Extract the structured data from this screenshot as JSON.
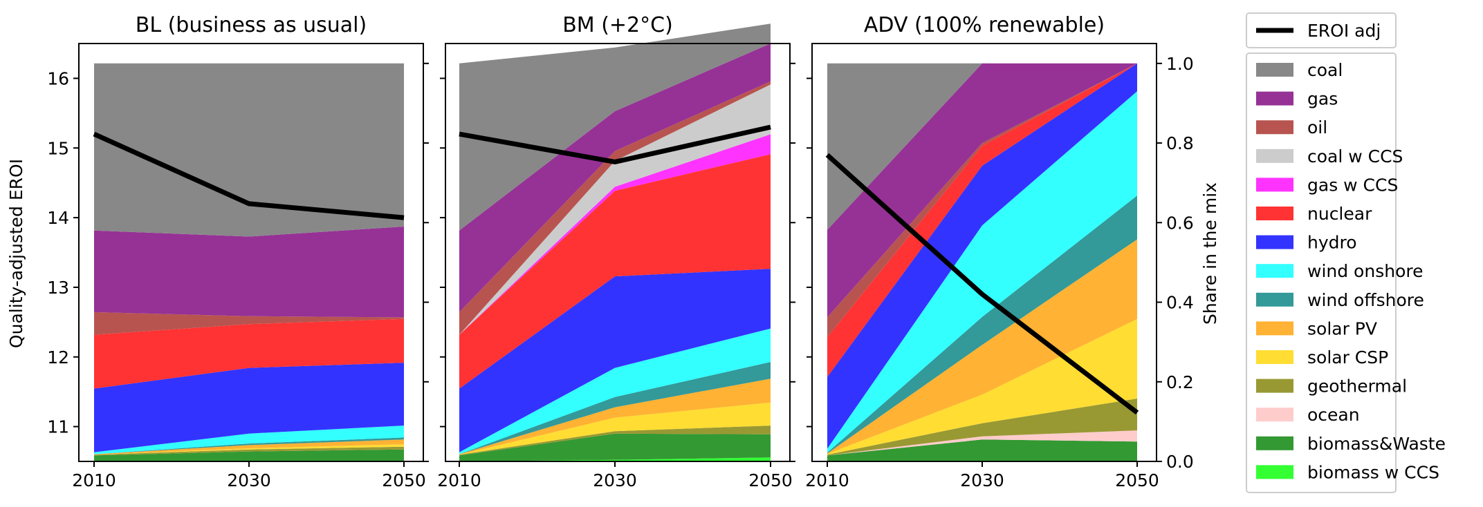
{
  "chart_data": {
    "type": "area",
    "x": [
      2010,
      2030,
      2050
    ],
    "x_tick_labels": [
      "2010",
      "2030",
      "2050"
    ],
    "left_axis": {
      "label": "Quality-adjusted EROI",
      "ylim": [
        10.5,
        16.5
      ],
      "ticks": [
        11,
        12,
        13,
        14,
        15,
        16
      ],
      "tick_labels": [
        "11",
        "12",
        "13",
        "14",
        "15",
        "16"
      ]
    },
    "right_axis": {
      "label": "Share in the mix",
      "ylim": [
        0.0,
        1.05
      ],
      "ticks": [
        0.0,
        0.2,
        0.4,
        0.6,
        0.8,
        1.0
      ],
      "tick_labels": [
        "0.0",
        "0.2",
        "0.4",
        "0.6",
        "0.8",
        "1.0"
      ]
    },
    "grid": false,
    "legend_position": "right, outside",
    "line_series": {
      "name": "EROI adj",
      "color": "#000000"
    },
    "stack_series": [
      {
        "name": "coal",
        "color": "#888888"
      },
      {
        "name": "gas",
        "color": "#963196"
      },
      {
        "name": "oil",
        "color": "#b85450"
      },
      {
        "name": "coal w CCS",
        "color": "#cccccc"
      },
      {
        "name": "gas w CCS",
        "color": "#ff33ff"
      },
      {
        "name": "nuclear",
        "color": "#ff3333"
      },
      {
        "name": "hydro",
        "color": "#3333ff"
      },
      {
        "name": "wind onshore",
        "color": "#33ffff"
      },
      {
        "name": "wind offshore",
        "color": "#339999"
      },
      {
        "name": "solar PV",
        "color": "#ffb233"
      },
      {
        "name": "solar CSP",
        "color": "#ffdd33"
      },
      {
        "name": "geothermal",
        "color": "#999933"
      },
      {
        "name": "ocean",
        "color": "#ffcccc"
      },
      {
        "name": "biomass&Waste",
        "color": "#339933"
      },
      {
        "name": "biomass w CCS",
        "color": "#33ff33"
      }
    ],
    "panels": [
      {
        "title": "BL (business as usual)",
        "eroi_adj": [
          15.2,
          14.2,
          14.0
        ],
        "stack_order_bottom_to_top": [
          "biomass w CCS",
          "biomass&Waste",
          "ocean",
          "geothermal",
          "solar CSP",
          "solar PV",
          "wind offshore",
          "wind onshore",
          "hydro",
          "nuclear",
          "oil",
          "gas",
          "coal"
        ],
        "shares": {
          "biomass w CCS": [
            0.0,
            0.0,
            0.0
          ],
          "biomass&Waste": [
            0.015,
            0.025,
            0.03
          ],
          "ocean": [
            0.0,
            0.0,
            0.0
          ],
          "geothermal": [
            0.002,
            0.005,
            0.007
          ],
          "solar CSP": [
            0.0,
            0.003,
            0.006
          ],
          "solar PV": [
            0.001,
            0.008,
            0.012
          ],
          "wind offshore": [
            0.0,
            0.004,
            0.005
          ],
          "wind onshore": [
            0.005,
            0.025,
            0.03
          ],
          "hydro": [
            0.16,
            0.165,
            0.158
          ],
          "nuclear": [
            0.135,
            0.11,
            0.11
          ],
          "oil": [
            0.057,
            0.02,
            0.004
          ],
          "gas": [
            0.205,
            0.2,
            0.228
          ],
          "coal": [
            0.42,
            0.435,
            0.41
          ]
        }
      },
      {
        "title": "BM (+2°C)",
        "eroi_adj": [
          15.2,
          14.8,
          15.3
        ],
        "stack_order_bottom_to_top": [
          "biomass w CCS",
          "biomass&Waste",
          "ocean",
          "geothermal",
          "solar CSP",
          "solar PV",
          "wind offshore",
          "wind onshore",
          "hydro",
          "nuclear",
          "gas w CCS",
          "coal w CCS",
          "oil",
          "gas",
          "coal"
        ],
        "shares": {
          "biomass w CCS": [
            0.0,
            0.004,
            0.01
          ],
          "biomass&Waste": [
            0.015,
            0.066,
            0.058
          ],
          "ocean": [
            0.0,
            0.0,
            0.0
          ],
          "geothermal": [
            0.002,
            0.006,
            0.022
          ],
          "solar CSP": [
            0.0,
            0.034,
            0.058
          ],
          "solar PV": [
            0.001,
            0.026,
            0.06
          ],
          "wind offshore": [
            0.0,
            0.026,
            0.042
          ],
          "wind onshore": [
            0.005,
            0.073,
            0.084
          ],
          "hydro": [
            0.16,
            0.23,
            0.15
          ],
          "nuclear": [
            0.135,
            0.215,
            0.288
          ],
          "gas w CCS": [
            0.0,
            0.01,
            0.05
          ],
          "coal w CCS": [
            0.0,
            0.065,
            0.125
          ],
          "oil": [
            0.057,
            0.025,
            0.008
          ],
          "gas": [
            0.205,
            0.1,
            0.095
          ],
          "coal": [
            0.42,
            0.16,
            0.05
          ]
        }
      },
      {
        "title": "ADV (100% renewable)",
        "eroi_adj": [
          14.9,
          12.9,
          11.2
        ],
        "stack_order_bottom_to_top": [
          "biomass w CCS",
          "biomass&Waste",
          "ocean",
          "geothermal",
          "solar CSP",
          "solar PV",
          "wind offshore",
          "wind onshore",
          "hydro",
          "nuclear",
          "oil",
          "gas",
          "coal"
        ],
        "shares": {
          "biomass w CCS": [
            0.0,
            0.0,
            0.0
          ],
          "biomass&Waste": [
            0.015,
            0.055,
            0.05
          ],
          "ocean": [
            0.0,
            0.008,
            0.028
          ],
          "geothermal": [
            0.002,
            0.033,
            0.08
          ],
          "solar CSP": [
            0.002,
            0.072,
            0.2
          ],
          "solar PV": [
            0.001,
            0.125,
            0.2
          ],
          "wind offshore": [
            0.002,
            0.07,
            0.11
          ],
          "wind onshore": [
            0.01,
            0.23,
            0.262
          ],
          "hydro": [
            0.18,
            0.15,
            0.07
          ],
          "nuclear": [
            0.1,
            0.05,
            0.0
          ],
          "oil": [
            0.05,
            0.007,
            0.0
          ],
          "gas": [
            0.22,
            0.2,
            0.0
          ],
          "coal": [
            0.418,
            0.0,
            0.0
          ]
        }
      }
    ]
  }
}
